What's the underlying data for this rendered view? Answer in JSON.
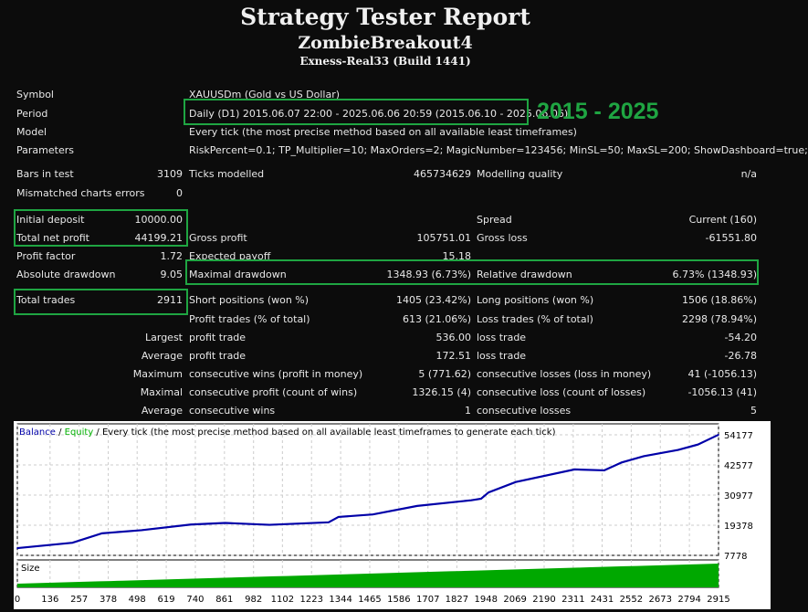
{
  "header": {
    "title": "Strategy Tester Report",
    "expert": "ZombieBreakout4",
    "server": "Exness-Real33 (Build 1441)"
  },
  "info": [
    {
      "label": "Symbol",
      "value": "XAUUSDm (Gold vs US Dollar)"
    },
    {
      "label": "Period",
      "value": "Daily (D1) 2015.06.07 22:00 - 2025.06.06 20:59 (2015.06.10 - 2025.06.06)"
    },
    {
      "label": "Model",
      "value": "Every tick (the most precise method based on all available least timeframes)"
    },
    {
      "label": "Parameters",
      "value": "RiskPercent=0.1; TP_Multiplier=10; MaxOrders=2; MagicNumber=123456; MinSL=50; MaxSL=200; ShowDashboard=true;"
    }
  ],
  "annotation": "2015 - 2025",
  "annotation_color": "#1fa542",
  "rows": [
    [
      "Bars in test",
      "3109",
      "Ticks modelled",
      "465734629",
      "Modelling quality",
      "n/a"
    ],
    [
      "Mismatched charts errors",
      "0",
      "",
      "",
      "",
      ""
    ],
    [
      "",
      "",
      "",
      "",
      "Spread",
      "Current (160)"
    ],
    [
      "Initial deposit",
      "10000.00",
      "",
      "",
      "",
      ""
    ],
    [
      "Total net profit",
      "44199.21",
      "Gross profit",
      "105751.01",
      "Gross loss",
      "-61551.80"
    ],
    [
      "Profit factor",
      "1.72",
      "Expected payoff",
      "15.18",
      "",
      ""
    ],
    [
      "Absolute drawdown",
      "9.05",
      "Maximal drawdown",
      "1348.93 (6.73%)",
      "Relative drawdown",
      "6.73% (1348.93)"
    ],
    [
      "Total trades",
      "2911",
      "Short positions (won %)",
      "1405 (23.42%)",
      "Long positions (won %)",
      "1506 (18.86%)"
    ],
    [
      "",
      "",
      "Profit trades (% of total)",
      "613 (21.06%)",
      "Loss trades (% of total)",
      "2298 (78.94%)"
    ],
    [
      "",
      "Largest",
      "profit trade",
      "536.00",
      "loss trade",
      "-54.20"
    ],
    [
      "",
      "Average",
      "profit trade",
      "172.51",
      "loss trade",
      "-26.78"
    ],
    [
      "",
      "Maximum",
      "consecutive wins (profit in money)",
      "5 (771.62)",
      "consecutive losses (loss in money)",
      "41 (-1056.13)"
    ],
    [
      "",
      "Maximal",
      "consecutive profit (count of wins)",
      "1326.15 (4)",
      "consecutive loss (count of losses)",
      "-1056.13 (41)"
    ],
    [
      "",
      "Average",
      "consecutive wins",
      "1",
      "consecutive losses",
      "5"
    ]
  ],
  "chart_data": {
    "type": "line",
    "legend": {
      "balance": "Balance",
      "sep1": " / ",
      "equity": "Equity",
      "rest": " / Every tick (the most precise method based on all available least timeframes to generate each tick)"
    },
    "colors": {
      "balance": "#0000a8",
      "equity": "#00b000",
      "size": "#00a800"
    },
    "size_label": "Size",
    "ylim": [
      7778,
      54177
    ],
    "yticks": [
      "54177",
      "42577",
      "30977",
      "19378",
      "7778"
    ],
    "xticks": [
      "0",
      "136",
      "257",
      "378",
      "498",
      "619",
      "740",
      "861",
      "982",
      "1102",
      "1223",
      "1344",
      "1465",
      "1586",
      "1707",
      "1827",
      "1948",
      "2069",
      "2190",
      "2311",
      "2431",
      "2552",
      "2673",
      "2794",
      "2915"
    ],
    "xlim": [
      0,
      2915
    ],
    "series": [
      {
        "name": "Balance",
        "x": [
          0,
          229,
          352,
          516,
          721,
          864,
          1048,
          1294,
          1335,
          1478,
          1662,
          1887,
          1928,
          1959,
          2072,
          2317,
          2440,
          2512,
          2604,
          2747,
          2829,
          2915
        ],
        "y": [
          10560,
          12620,
          16260,
          17470,
          19650,
          20260,
          19530,
          20500,
          22560,
          23530,
          26800,
          28980,
          29590,
          32010,
          36000,
          40850,
          40490,
          43520,
          45940,
          48360,
          50420,
          54199
        ]
      }
    ],
    "grid": true
  }
}
